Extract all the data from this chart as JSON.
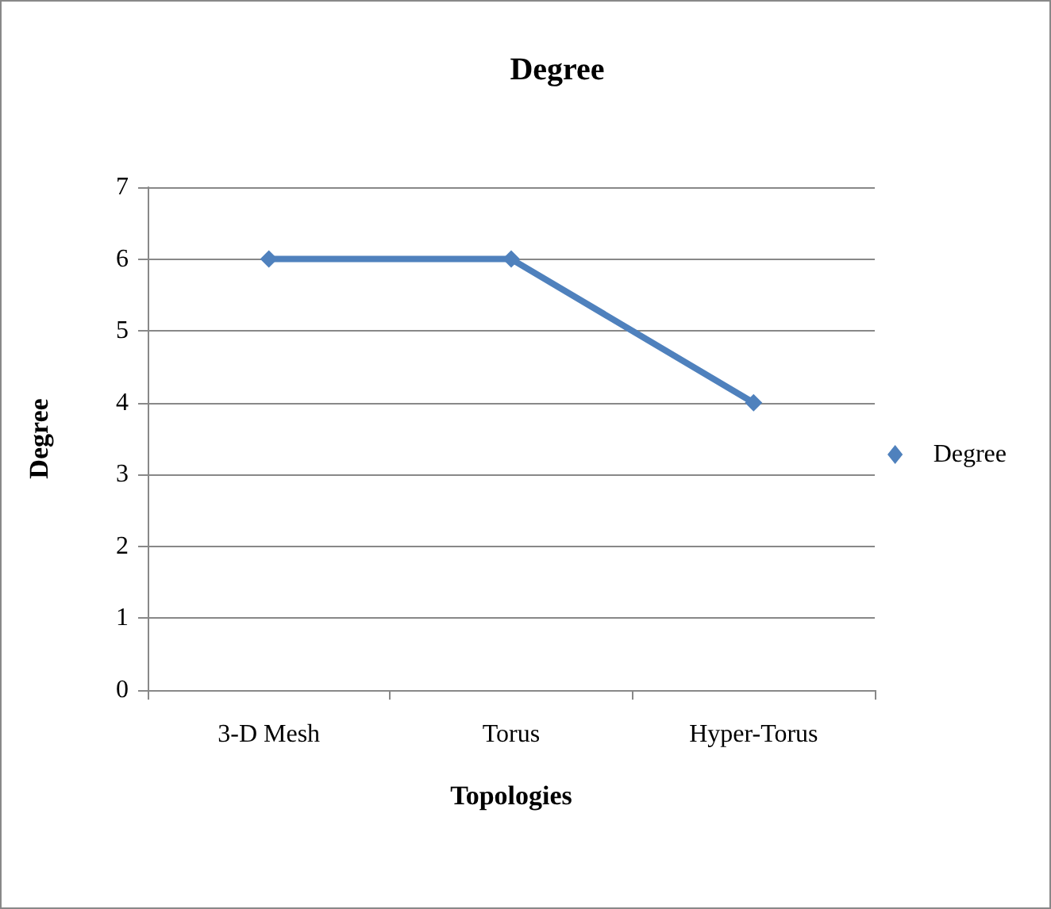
{
  "chart_data": {
    "type": "line",
    "title": "Degree",
    "xlabel": "Topologies",
    "ylabel": "Degree",
    "categories": [
      "3-D Mesh",
      "Torus",
      "Hyper-Torus"
    ],
    "series": [
      {
        "name": "Degree",
        "color": "#4f81bd",
        "values": [
          6,
          6,
          4
        ]
      }
    ],
    "ylim": [
      0,
      7
    ],
    "yticks": [
      0,
      1,
      2,
      3,
      4,
      5,
      6,
      7
    ],
    "grid": "y",
    "legend": "right",
    "marker": "diamond",
    "line_style": "solid"
  }
}
